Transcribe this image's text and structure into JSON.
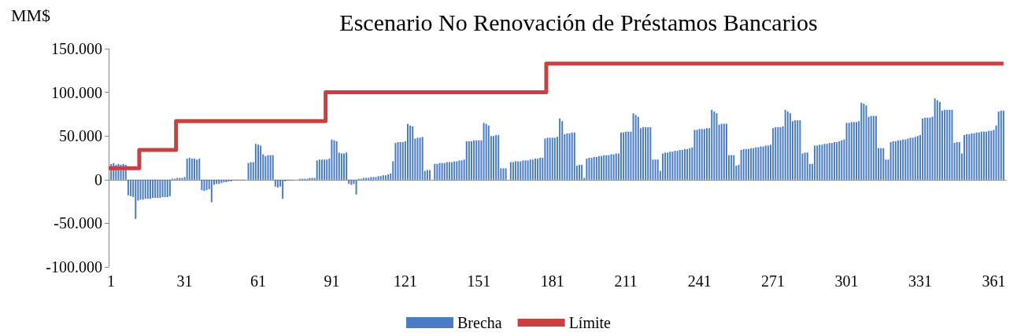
{
  "chart_data": {
    "type": "bar",
    "title": "Escenario No Renovación de Préstamos Bancarios",
    "ylabel": "MM$",
    "xlim": [
      0,
      366
    ],
    "xticks": [
      1,
      31,
      61,
      91,
      121,
      151,
      181,
      211,
      241,
      271,
      301,
      331,
      361
    ],
    "ylim": [
      -100000,
      150000
    ],
    "yticks": [
      {
        "value": -100000,
        "label": "-100.000"
      },
      {
        "value": -50000,
        "label": "-50.000"
      },
      {
        "value": 0,
        "label": "0"
      },
      {
        "value": 50000,
        "label": "50.000"
      },
      {
        "value": 100000,
        "label": "100.000"
      },
      {
        "value": 150000,
        "label": "150.000"
      }
    ],
    "legend": "bottom",
    "marker": "none",
    "series": [
      {
        "name": "Brecha",
        "color": "#4a7cc4",
        "x": [
          1,
          2,
          3,
          4,
          5,
          6,
          7,
          8,
          9,
          10,
          11,
          12,
          13,
          14,
          15,
          16,
          17,
          18,
          19,
          20,
          21,
          22,
          23,
          24,
          25,
          26,
          27,
          28,
          29,
          30,
          31,
          32,
          33,
          34,
          35,
          36,
          37,
          38,
          39,
          40,
          41,
          42,
          43,
          44,
          45,
          46,
          47,
          48,
          49,
          50,
          51,
          52,
          53,
          54,
          55,
          56,
          57,
          58,
          59,
          60,
          61,
          62,
          63,
          64,
          65,
          66,
          67,
          68,
          69,
          70,
          71,
          72,
          73,
          74,
          75,
          76,
          77,
          78,
          79,
          80,
          81,
          82,
          83,
          84,
          85,
          86,
          87,
          88,
          89,
          90,
          91,
          92,
          93,
          94,
          95,
          96,
          97,
          98,
          99,
          100,
          101,
          102,
          103,
          104,
          105,
          106,
          107,
          108,
          109,
          110,
          111,
          112,
          113,
          114,
          115,
          116,
          117,
          118,
          119,
          120,
          121,
          122,
          123,
          124,
          125,
          126,
          127,
          128,
          129,
          130,
          131,
          132,
          133,
          134,
          135,
          136,
          137,
          138,
          139,
          140,
          141,
          142,
          143,
          144,
          145,
          146,
          147,
          148,
          149,
          150,
          151,
          152,
          153,
          154,
          155,
          156,
          157,
          158,
          159,
          160,
          161,
          162,
          163,
          164,
          165,
          166,
          167,
          168,
          169,
          170,
          171,
          172,
          173,
          174,
          175,
          176,
          177,
          178,
          179,
          180,
          181,
          182,
          183,
          184,
          185,
          186,
          187,
          188,
          189,
          190,
          191,
          192,
          193,
          194,
          195,
          196,
          197,
          198,
          199,
          200,
          201,
          202,
          203,
          204,
          205,
          206,
          207,
          208,
          209,
          210,
          211,
          212,
          213,
          214,
          215,
          216,
          217,
          218,
          219,
          220,
          221,
          222,
          223,
          224,
          225,
          226,
          227,
          228,
          229,
          230,
          231,
          232,
          233,
          234,
          235,
          236,
          237,
          238,
          239,
          240,
          241,
          242,
          243,
          244,
          245,
          246,
          247,
          248,
          249,
          250,
          251,
          252,
          253,
          254,
          255,
          256,
          257,
          258,
          259,
          260,
          261,
          262,
          263,
          264,
          265,
          266,
          267,
          268,
          269,
          270,
          271,
          272,
          273,
          274,
          275,
          276,
          277,
          278,
          279,
          280,
          281,
          282,
          283,
          284,
          285,
          286,
          287,
          288,
          289,
          290,
          291,
          292,
          293,
          294,
          295,
          296,
          297,
          298,
          299,
          300,
          301,
          302,
          303,
          304,
          305,
          306,
          307,
          308,
          309,
          310,
          311,
          312,
          313,
          314,
          315,
          316,
          317,
          318,
          319,
          320,
          321,
          322,
          323,
          324,
          325,
          326,
          327,
          328,
          329,
          330,
          331,
          332,
          333,
          334,
          335,
          336,
          337,
          338,
          339,
          340,
          341,
          342,
          343,
          344,
          345,
          346,
          347,
          348,
          349,
          350,
          351,
          352,
          353,
          354,
          355,
          356,
          357,
          358,
          359,
          360,
          361,
          362,
          363,
          364,
          365
        ],
        "values": [
          18000,
          19000,
          17000,
          18000,
          17000,
          18000,
          17000,
          -18000,
          -19000,
          -20000,
          -45000,
          -24000,
          -23000,
          -23000,
          -22000,
          -22000,
          -22000,
          -21000,
          -21000,
          -21000,
          -21000,
          -20000,
          -20000,
          -20000,
          -19000,
          1000,
          1000,
          2000,
          2000,
          2000,
          3000,
          24000,
          25000,
          24000,
          24000,
          23000,
          24000,
          -12000,
          -13000,
          -12000,
          -11000,
          -26000,
          -6000,
          -5000,
          -5000,
          -4000,
          -3000,
          -3000,
          -2000,
          -2000,
          -1000,
          -1000,
          -1000,
          -1000,
          -1000,
          null,
          19000,
          20000,
          20000,
          41000,
          40000,
          39000,
          29000,
          27000,
          28000,
          28000,
          28000,
          -8000,
          -9000,
          -8000,
          -22000,
          -2000,
          -1000,
          -1000,
          -1000,
          null,
          null,
          1000,
          1000,
          1000,
          1000,
          2000,
          2000,
          2000,
          22000,
          23000,
          23000,
          23000,
          23000,
          24000,
          46000,
          45000,
          44000,
          31000,
          30000,
          30000,
          31000,
          -5000,
          -6000,
          -5000,
          -17000,
          1000,
          1000,
          2000,
          2000,
          2000,
          3000,
          3000,
          3000,
          4000,
          4000,
          5000,
          5000,
          6000,
          7000,
          21000,
          42000,
          43000,
          43000,
          43000,
          44000,
          64000,
          62000,
          61000,
          47000,
          48000,
          48000,
          49000,
          10000,
          11000,
          11000,
          null,
          18000,
          18000,
          19000,
          19000,
          19000,
          20000,
          20000,
          20000,
          21000,
          21000,
          22000,
          22000,
          23000,
          44000,
          44000,
          44000,
          45000,
          45000,
          45000,
          45000,
          65000,
          64000,
          62000,
          50000,
          50000,
          51000,
          51000,
          13000,
          13000,
          13000,
          null,
          20000,
          20000,
          21000,
          21000,
          21000,
          22000,
          22000,
          22000,
          23000,
          23000,
          24000,
          24000,
          25000,
          25000,
          47000,
          48000,
          48000,
          48000,
          48000,
          49000,
          70000,
          67000,
          52000,
          53000,
          53000,
          54000,
          54000,
          16000,
          17000,
          17000,
          2000,
          24000,
          25000,
          25000,
          26000,
          26000,
          27000,
          27000,
          28000,
          28000,
          28000,
          29000,
          29000,
          30000,
          30000,
          54000,
          54000,
          55000,
          55000,
          55000,
          76000,
          74000,
          72000,
          59000,
          60000,
          60000,
          60000,
          60000,
          23000,
          23000,
          23000,
          10000,
          30000,
          31000,
          31000,
          32000,
          32000,
          33000,
          33000,
          34000,
          34000,
          35000,
          35000,
          36000,
          37000,
          57000,
          57000,
          58000,
          58000,
          58000,
          59000,
          59000,
          80000,
          78000,
          76000,
          63000,
          64000,
          64000,
          64000,
          28000,
          28000,
          28000,
          16000,
          17000,
          34000,
          35000,
          35000,
          35000,
          36000,
          36000,
          37000,
          37000,
          38000,
          38000,
          39000,
          39000,
          40000,
          59000,
          60000,
          60000,
          60000,
          61000,
          80000,
          78000,
          76000,
          67000,
          68000,
          68000,
          68000,
          30000,
          31000,
          31000,
          18000,
          18000,
          39000,
          39000,
          40000,
          40000,
          41000,
          41000,
          42000,
          42000,
          43000,
          43000,
          44000,
          45000,
          46000,
          65000,
          65000,
          66000,
          66000,
          66000,
          67000,
          88000,
          87000,
          85000,
          72000,
          73000,
          73000,
          73000,
          36000,
          36000,
          36000,
          23000,
          23000,
          43000,
          44000,
          44000,
          45000,
          45000,
          46000,
          46000,
          47000,
          48000,
          48000,
          49000,
          50000,
          51000,
          70000,
          71000,
          71000,
          71000,
          72000,
          93000,
          91000,
          89000,
          79000,
          80000,
          80000,
          80000,
          80000,
          42000,
          43000,
          43000,
          30000,
          51000,
          52000,
          52000,
          53000,
          53000,
          54000,
          54000,
          55000,
          55000,
          55000,
          56000,
          56000,
          57000,
          62000,
          78000,
          79000,
          79000
        ]
      },
      {
        "name": "Límite",
        "type": "step",
        "color": "#c8403f",
        "x": [
          0,
          12.5,
          27.5,
          88.5,
          178.5,
          365
        ],
        "values": [
          13000,
          34000,
          67000,
          100000,
          133000,
          133000
        ]
      }
    ]
  }
}
